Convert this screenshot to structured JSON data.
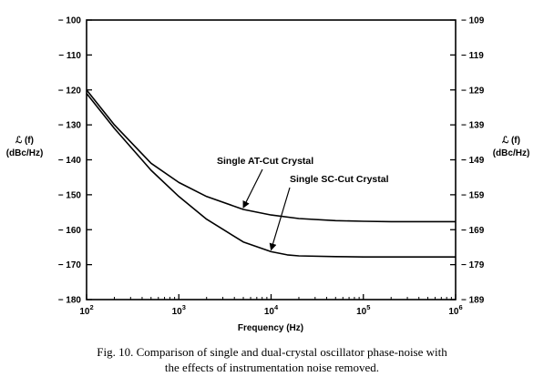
{
  "chart_data": {
    "type": "line",
    "xlabel": "Frequency (Hz)",
    "x_scale": "log",
    "xlim": [
      100,
      1000000
    ],
    "x_ticks": [
      {
        "value": 100,
        "base": "10",
        "exp": "2"
      },
      {
        "value": 1000,
        "base": "10",
        "exp": "3"
      },
      {
        "value": 10000,
        "base": "10",
        "exp": "4"
      },
      {
        "value": 100000,
        "base": "10",
        "exp": "5"
      },
      {
        "value": 1000000,
        "base": "10",
        "exp": "6"
      }
    ],
    "ylabel_left": "ℒ (f)",
    "ylabel_left_unit": "(dBc/Hz)",
    "ylim_left": [
      -180,
      -100
    ],
    "y_ticks_left": [
      "-100",
      "-110",
      "-120",
      "-130",
      "-140",
      "-150",
      "-160",
      "-170",
      "-180"
    ],
    "ylabel_right": "ℒ (f)",
    "ylabel_right_unit": "(dBc/Hz)",
    "ylim_right": [
      -189,
      -109
    ],
    "y_ticks_right": [
      "-109",
      "-119",
      "-129",
      "-139",
      "-149",
      "-159",
      "-169",
      "-179",
      "-189"
    ],
    "grid": false,
    "series": [
      {
        "name": "Single AT-Cut Crystal",
        "x": [
          100,
          200,
          500,
          1000,
          2000,
          5000,
          10000,
          20000,
          50000,
          100000,
          200000,
          500000,
          1000000
        ],
        "y": [
          -120,
          -130,
          -141,
          -146.5,
          -150.5,
          -154.2,
          -155.8,
          -156.8,
          -157.4,
          -157.6,
          -157.7,
          -157.7,
          -157.7
        ]
      },
      {
        "name": "Single SC-Cut Crystal",
        "x": [
          100,
          200,
          500,
          1000,
          2000,
          5000,
          10000,
          15000,
          20000,
          50000,
          100000,
          200000,
          500000,
          1000000
        ],
        "y": [
          -121,
          -131,
          -143,
          -150.5,
          -157,
          -163.5,
          -166.3,
          -167.2,
          -167.5,
          -167.7,
          -167.8,
          -167.8,
          -167.8,
          -167.8
        ]
      }
    ],
    "annotations": [
      {
        "text": "Single AT-Cut Crystal",
        "arrow_to": {
          "x": 5000,
          "y": -154.2
        }
      },
      {
        "text": "Single SC-Cut Crystal",
        "arrow_to": {
          "x": 10000,
          "y": -166.3
        }
      }
    ]
  },
  "caption": {
    "line1": "Fig. 10.  Comparison of single and dual-crystal oscillator phase-noise with",
    "line2": "the effects of instrumentation noise removed."
  }
}
